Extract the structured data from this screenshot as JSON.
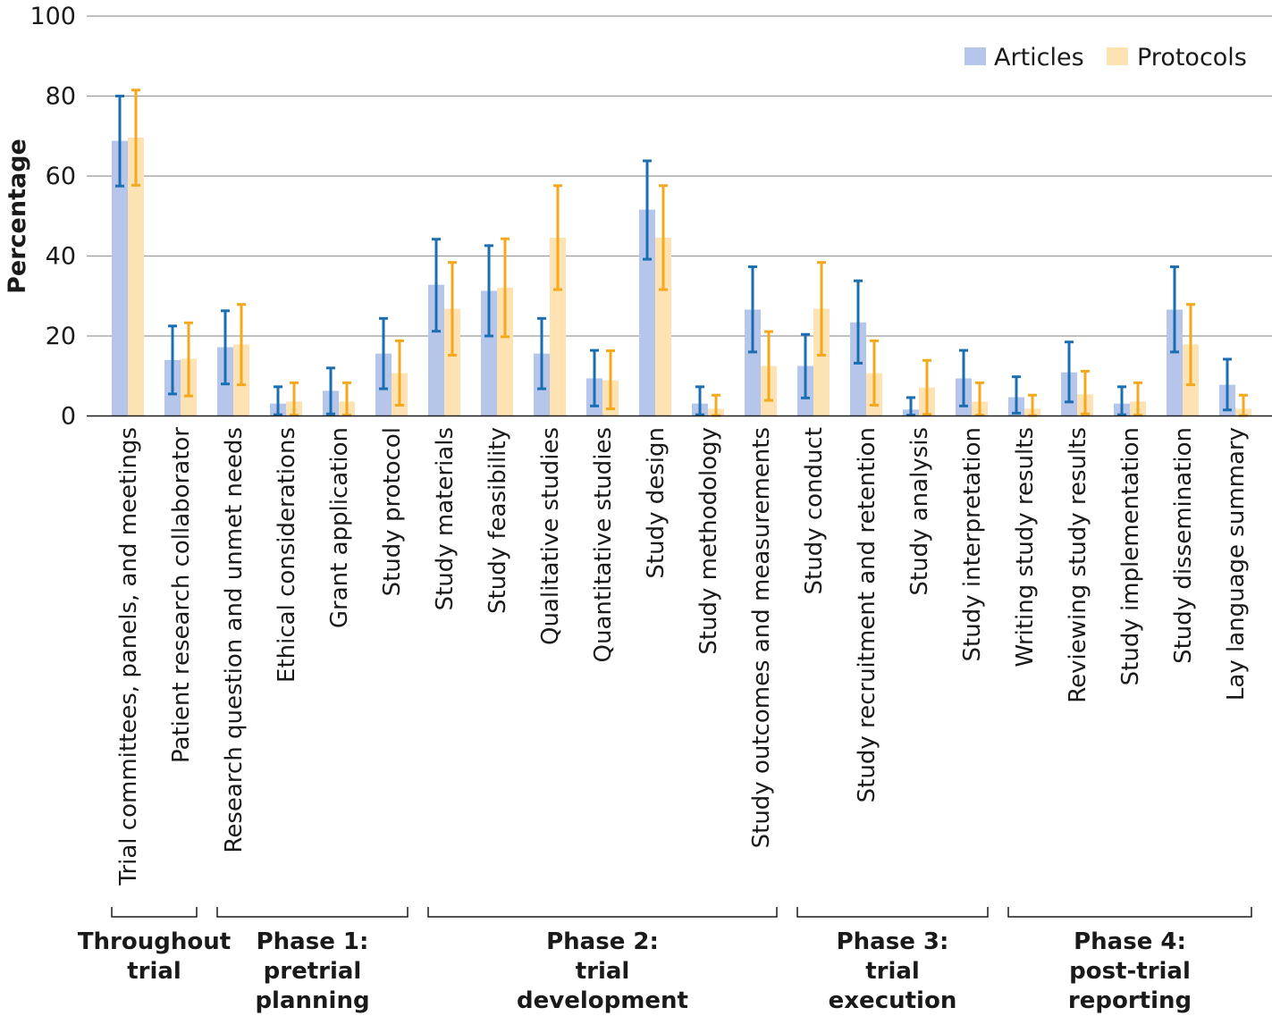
{
  "chart_data": {
    "type": "bar",
    "ylabel": "Percentage",
    "xlabel": "",
    "ylim": [
      0,
      100
    ],
    "yticks": [
      "0",
      "20",
      "40",
      "60",
      "80",
      "100"
    ],
    "grid": true,
    "legend_position": "top-right",
    "categories": [
      "Trial committees, panels, and meetings",
      "Patient research collaborator",
      "Research question and unmet needs",
      "Ethical considerations",
      "Grant application",
      "Study protocol",
      "Study materials",
      "Study feasibility",
      "Qualitative studies",
      "Quantitative studies",
      "Study design",
      "Study methodology",
      "Study outcomes and measurements",
      "Study conduct",
      "Study recruitment and retention",
      "Study analysis",
      "Study interpretation",
      "Writing study results",
      "Reviewing study results",
      "Study implementation",
      "Study dissemination",
      "Lay language summary"
    ],
    "series": [
      {
        "name": "Articles",
        "color": "#b6c5ea",
        "error_color": "#1a6fb3",
        "values": [
          68.8,
          14.0,
          17.2,
          3.1,
          6.3,
          15.6,
          32.8,
          31.3,
          15.6,
          9.4,
          51.6,
          3.1,
          26.6,
          12.5,
          23.4,
          1.6,
          9.4,
          4.7,
          10.9,
          3.1,
          26.6,
          7.8
        ],
        "lower": [
          57.5,
          5.5,
          8.0,
          0.3,
          0.5,
          6.8,
          21.2,
          20.0,
          6.8,
          2.5,
          39.2,
          0.3,
          16.0,
          4.5,
          13.2,
          0.2,
          2.5,
          0.7,
          3.5,
          0.3,
          16.0,
          1.5
        ],
        "upper": [
          80.0,
          22.5,
          26.3,
          7.3,
          12.0,
          24.4,
          44.2,
          42.6,
          24.4,
          16.4,
          63.8,
          7.3,
          37.3,
          20.4,
          33.8,
          4.6,
          16.4,
          9.8,
          18.5,
          7.3,
          37.3,
          14.2
        ]
      },
      {
        "name": "Protocols",
        "color": "#fde2b3",
        "error_color": "#f5a81c",
        "values": [
          69.6,
          14.3,
          17.9,
          3.6,
          3.6,
          10.7,
          26.8,
          32.1,
          44.6,
          8.9,
          44.6,
          1.8,
          12.5,
          26.8,
          10.7,
          7.1,
          3.6,
          1.8,
          5.4,
          3.6,
          17.9,
          1.8
        ],
        "lower": [
          57.7,
          5.0,
          7.8,
          0.2,
          0.2,
          2.7,
          15.2,
          19.8,
          31.6,
          1.8,
          31.6,
          0.1,
          3.9,
          15.2,
          2.7,
          0.4,
          0.2,
          0.1,
          0.5,
          0.2,
          7.8,
          0.1
        ],
        "upper": [
          81.5,
          23.3,
          27.9,
          8.3,
          8.3,
          18.8,
          38.4,
          44.3,
          57.6,
          16.3,
          57.6,
          5.2,
          21.1,
          38.4,
          18.8,
          13.9,
          8.3,
          5.2,
          11.2,
          8.3,
          27.9,
          5.2
        ]
      }
    ],
    "groups": [
      {
        "lines": [
          "Throughout",
          "trial"
        ],
        "first": 0,
        "last": 1
      },
      {
        "lines": [
          "Phase 1:",
          "pretrial",
          "planning"
        ],
        "first": 2,
        "last": 5
      },
      {
        "lines": [
          "Phase 2:",
          "trial",
          "development"
        ],
        "first": 6,
        "last": 12
      },
      {
        "lines": [
          "Phase 3:",
          "trial",
          "execution"
        ],
        "first": 13,
        "last": 16
      },
      {
        "lines": [
          "Phase 4:",
          "post-trial",
          "reporting"
        ],
        "first": 17,
        "last": 21
      }
    ]
  }
}
